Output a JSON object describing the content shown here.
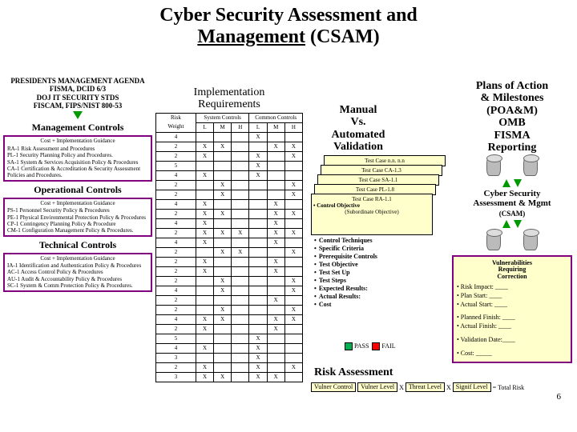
{
  "title_a": "Cyber Security Assessment and",
  "title_b": "Management",
  "title_c": "(CSAM)",
  "agenda": {
    "l1": "PRESIDENTS MANAGEMENT AGENDA",
    "l2": "FISMA, DCID 6/3",
    "l3": "DOJ IT SECURITY STDS",
    "l4": "FISCAM, FIPS/NIST 800-53"
  },
  "mgmt": {
    "hdr": "Management Controls",
    "cost": "Cost + Implementation Guidance",
    "r1": "RA-1  Risk Assessment and Procedures",
    "r2": "PL-1  Security Planning Policy and Procedures.",
    "r3": "SA-1 System & Services Acquisition Policy & Procedures",
    "r4": "CA-1 Certification & Accreditation & Security Assessment Policies and Procedures."
  },
  "ops": {
    "hdr": "Operational Controls",
    "cost": "Cost + Implementation Guidance",
    "r1": "PS-1 Personnel Security Policy & Procedures",
    "r2": "PE-1 Physical Environmental Protection Policy & Procedures",
    "r3": "CP-1 Contingency Planning Policy & Procedure",
    "r4": "CM-1 Configuration Management Policy & Procedures."
  },
  "tech": {
    "hdr": "Technical Controls",
    "cost": "Cost + Implementation Guidance",
    "r1": "IA-1 Identification and Authentication Policy & Procedures",
    "r2": "AC-1 Access Control Policy & Procedures",
    "r3": "AU-1 Audit & Accountability Policy & Procedures",
    "r4": "SC-1 System & Comm Protection Policy & Procedures."
  },
  "impl": {
    "hdr1": "Implementation",
    "hdr2": "Requirements",
    "risk": "Risk",
    "wt": "Weight",
    "sc": "System Controls",
    "cc": "Common Controls",
    "L": "L",
    "M": "M",
    "H": "H"
  },
  "weights": [
    4,
    2,
    2,
    5,
    4,
    2,
    2,
    4,
    2,
    4,
    2,
    4,
    2,
    2,
    2,
    2,
    4,
    2,
    2,
    4,
    2,
    5,
    4,
    3,
    2,
    3
  ],
  "manual": {
    "l1": "Manual",
    "l2": "Vs.",
    "l3": "Automated Validation"
  },
  "tc": {
    "a": "Test Case n.n. n.n",
    "b": "Test Case CA-1.3",
    "c": "Test Case SA-1.1",
    "d": "Test Case PL-1.8",
    "e": "Test Case RA-1.1",
    "obj": "• Control Objective",
    "sub": "(Subordinate Objective)"
  },
  "bl": {
    "a": "Control Techniques",
    "b": "Specific Criteria",
    "c": "Prerequisite Controls",
    "d": "Test Objective",
    "e": "Test Set Up",
    "f": "Test Steps",
    "g": "Expected Results:",
    "h": "Actual Results:",
    "i": "Cost"
  },
  "pf": {
    "pass": "PASS",
    "fail": "FAIL"
  },
  "ra": {
    "hdr": "Risk Assessment",
    "vc": "Vulner Control",
    "vl": "Vulner Level",
    "tl": "Threat Level",
    "sl": "Signif Level",
    "tr": "Total Risk",
    "x": "X",
    "eq": "="
  },
  "poa": {
    "l1": "Plans of Action",
    "l2": "& Milestones",
    "l3": "(POA&M)",
    "l4": "OMB",
    "l5": "FISMA",
    "l6": "Reporting"
  },
  "csam": {
    "l1": "Cyber Security",
    "l2": "Assessment & Mgmt",
    "l3": "(CSAM)"
  },
  "vuln": {
    "h1": "Vulnerabilities",
    "h2": "Requiring",
    "h3": "Correction",
    "a": "• Risk Impact:     ____",
    "b": "• Plan Start:         ____",
    "c": "• Actual Start:      ____",
    "d": "• Planned Finish: ____",
    "e": "• Actual Finish:    ____",
    "f": "• Validation Date:____",
    "g": "• Cost: _____"
  },
  "pagenum": "6",
  "colors": {
    "purple": "#800080",
    "green": "#009900",
    "card": "#ffffcc",
    "pass": "#00b050",
    "fail": "#ff0000"
  }
}
